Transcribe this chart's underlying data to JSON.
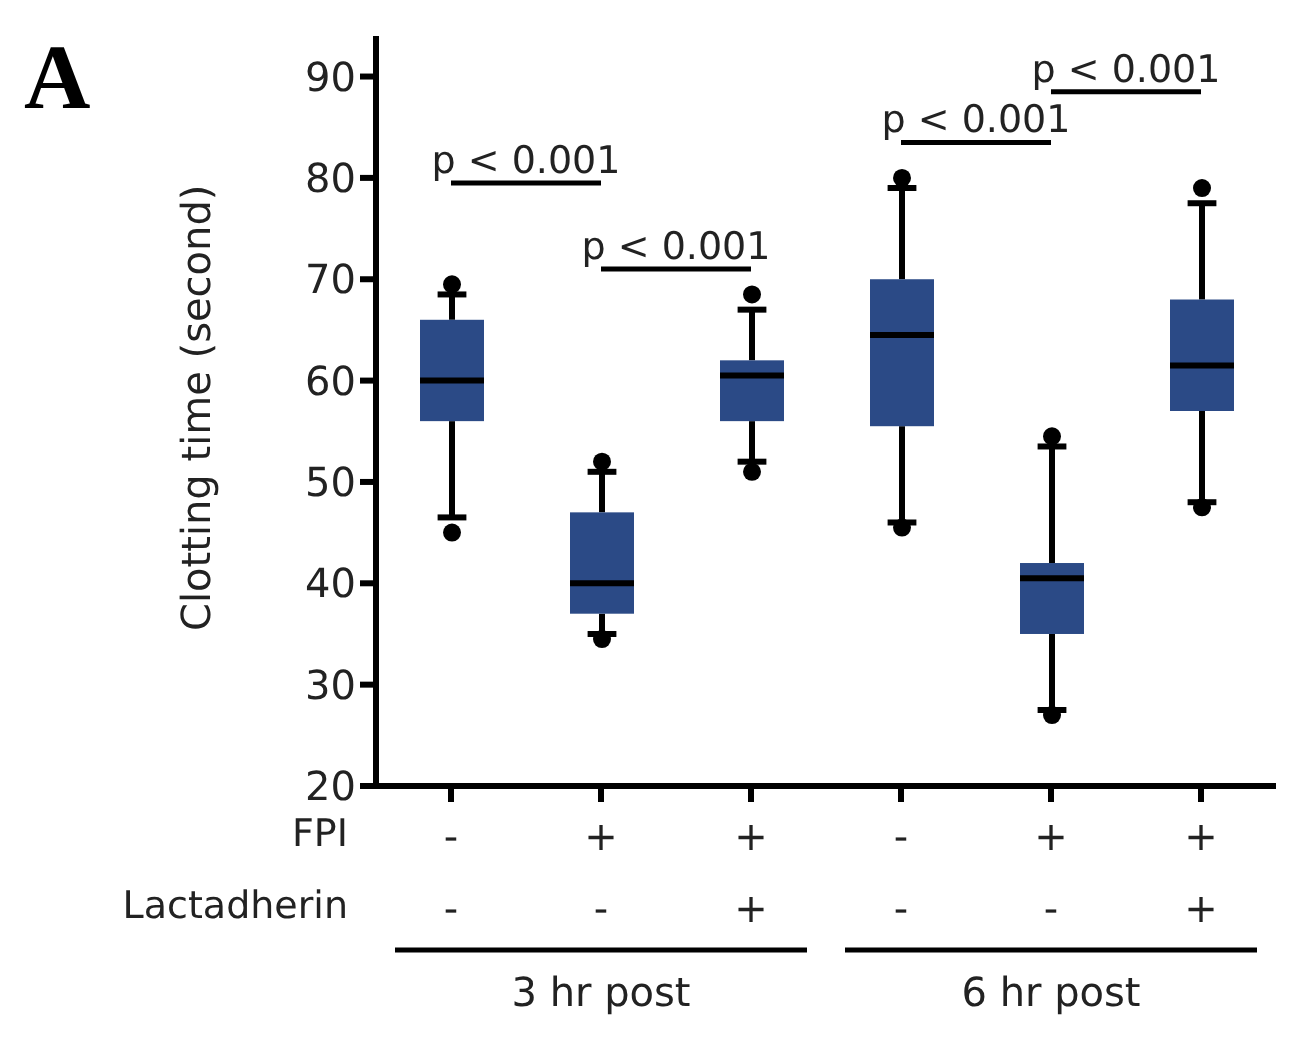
{
  "chart_data": {
    "type": "box",
    "title": "A",
    "ylabel": "Clotting time (second)",
    "categories": [
      "-\n-",
      "+\n-",
      "+\n+",
      "-\n-",
      "+\n-",
      "+\n+"
    ],
    "color": "#2b4a86",
    "boxes": [
      {
        "low": 46.5,
        "q1": 56,
        "median": 60,
        "q3": 66,
        "high": 68.5,
        "outliers": [
          45,
          69.5
        ]
      },
      {
        "low": 35,
        "q1": 37,
        "median": 40,
        "q3": 47,
        "high": 51,
        "outliers": [
          34.5,
          52
        ]
      },
      {
        "low": 52,
        "q1": 56,
        "median": 60.5,
        "q3": 62,
        "high": 67,
        "outliers": [
          51,
          68.5
        ]
      },
      {
        "low": 46,
        "q1": 55.5,
        "median": 64.5,
        "q3": 70,
        "high": 79,
        "outliers": [
          45.5,
          80
        ]
      },
      {
        "low": 27.5,
        "q1": 35,
        "median": 40.5,
        "q3": 42,
        "high": 53.5,
        "outliers": [
          27,
          54.5
        ]
      },
      {
        "low": 48,
        "q1": 57,
        "median": 61.5,
        "q3": 68,
        "high": 77.5,
        "outliers": [
          47.5,
          79
        ]
      }
    ],
    "ylim": [
      20,
      94
    ],
    "yticks": [
      20,
      30,
      40,
      50,
      60,
      70,
      80,
      90
    ],
    "annotations": [
      "p < 0.001",
      "p < 0.001",
      "p < 0.001",
      "p < 0.001",
      "FPI",
      "Lactadherin",
      "3 hr post",
      "6 hr post"
    ]
  }
}
